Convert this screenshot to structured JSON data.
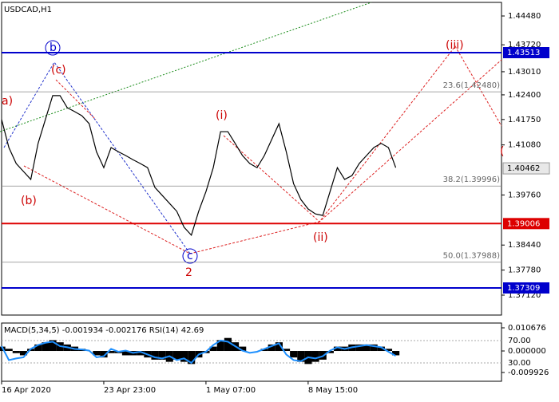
{
  "chart_data": [
    {
      "type": "line",
      "title": "USDCAD,H1",
      "categories": [
        "16 Apr 2020",
        null,
        null,
        null,
        null,
        null,
        null,
        null,
        null,
        null,
        null,
        null,
        null,
        null,
        "23 Apr 23:00",
        null,
        null,
        null,
        null,
        null,
        null,
        null,
        null,
        null,
        null,
        null,
        null,
        null,
        "1 May 07:00",
        null,
        null,
        null,
        null,
        null,
        null,
        null,
        null,
        null,
        null,
        null,
        null,
        null,
        "8 May 15:00",
        null,
        null,
        null,
        null,
        null,
        null,
        null,
        null,
        null,
        null,
        null,
        null
      ],
      "series": [
        {
          "name": "USDCAD",
          "color": "#000000",
          "values": [
            1.4175,
            1.4101,
            1.4059,
            1.4038,
            1.4017,
            1.4112,
            1.4175,
            1.4238,
            1.4238,
            1.4206,
            1.4196,
            1.4185,
            1.4164,
            1.409,
            1.4048,
            1.4101,
            1.409,
            1.408,
            1.4069,
            1.4059,
            1.4048,
            1.3996,
            1.3975,
            1.3954,
            1.3933,
            1.3891,
            1.387,
            1.3933,
            1.3985,
            1.4048,
            1.4143,
            1.4143,
            1.4112,
            1.408,
            1.4059,
            1.4048,
            1.408,
            1.4122,
            1.4164,
            1.409,
            1.4006,
            1.3964,
            1.3939,
            1.3926,
            1.3922,
            1.3985,
            1.4048,
            1.4017,
            1.4027,
            1.4059,
            1.408,
            1.4101,
            1.4112,
            1.4101,
            1.4048
          ]
        }
      ],
      "ylim": [
        1.44838,
        1.36594
      ],
      "yticks": [
        {
          "value": 1.4448,
          "label": "1.44480"
        },
        {
          "value": 1.4372,
          "label": "1.43720"
        },
        {
          "value": 1.4301,
          "label": "1.43010"
        },
        {
          "value": 1.424,
          "label": "1.42400"
        },
        {
          "value": 1.4175,
          "label": "1.41750"
        },
        {
          "value": 1.4108,
          "label": "1.41080"
        },
        {
          "value": 1.3976,
          "label": "1.39760"
        },
        {
          "value": 1.3844,
          "label": "1.38440"
        },
        {
          "value": 1.3778,
          "label": "1.37780"
        },
        {
          "value": 1.3712,
          "label": "1.37120"
        }
      ],
      "levels": [
        {
          "value": 1.43513,
          "label": "1.43513",
          "color": "#0000cc"
        },
        {
          "value": 1.39006,
          "label": "1.39006",
          "color": "#dd0000"
        },
        {
          "value": 1.37309,
          "label": "1.37309",
          "color": "#0000cc"
        }
      ],
      "current": {
        "value": 1.40462,
        "label": "1.40462"
      },
      "fib_levels": [
        {
          "value": 1.4248,
          "label": "23.6(1.42480)"
        },
        {
          "value": 1.39996,
          "label": "38.2(1.39996)"
        },
        {
          "value": 1.37988,
          "label": "50.0(1.37988)"
        }
      ],
      "annotations": [
        {
          "text": "a)",
          "color": "#cc0000"
        },
        {
          "text": "(b)",
          "color": "#cc0000"
        },
        {
          "text": "(c)",
          "color": "#cc0000"
        },
        {
          "text": "b",
          "color": "#0000cc"
        },
        {
          "text": "c",
          "color": "#0000cc"
        },
        {
          "text": "2",
          "color": "#cc0000"
        },
        {
          "text": "(i)",
          "color": "#cc0000"
        },
        {
          "text": "(ii)",
          "color": "#cc0000"
        },
        {
          "text": "(iii)",
          "color": "#cc0000"
        },
        {
          "text": "(",
          "color": "#cc0000"
        }
      ]
    },
    {
      "type": "macd",
      "title": "MACD(5,34,5) -0.001934 -0.002176 RSI(14) 42.69",
      "series": [
        {
          "name": "MACD",
          "color": "#000000",
          "values": [
            0.002,
            0.001,
            -0.001,
            -0.002,
            0.001,
            0.003,
            0.004,
            0.005,
            0.004,
            0.003,
            0.002,
            0.001,
            0.0,
            -0.002,
            -0.003,
            -0.001,
            -0.001,
            -0.002,
            -0.002,
            -0.002,
            -0.003,
            -0.004,
            -0.004,
            -0.005,
            -0.004,
            -0.005,
            -0.006,
            -0.003,
            -0.001,
            0.002,
            0.005,
            0.006,
            0.004,
            0.002,
            0.0,
            0.0,
            0.001,
            0.003,
            0.004,
            0.001,
            -0.003,
            -0.005,
            -0.006,
            -0.005,
            -0.004,
            -0.001,
            0.002,
            0.002,
            0.003,
            0.003,
            0.003,
            0.003,
            0.002,
            0.001,
            -0.002
          ]
        },
        {
          "name": "RSI",
          "color": "#1e90ff",
          "axis": "y2",
          "values": [
            60,
            35,
            38,
            40,
            55,
            62,
            66,
            68,
            60,
            58,
            55,
            54,
            52,
            40,
            42,
            55,
            50,
            52,
            48,
            50,
            45,
            40,
            38,
            42,
            35,
            38,
            30,
            45,
            50,
            62,
            70,
            68,
            60,
            52,
            48,
            50,
            55,
            60,
            65,
            45,
            35,
            33,
            40,
            38,
            42,
            52,
            58,
            55,
            58,
            60,
            62,
            60,
            58,
            50,
            42.69
          ]
        }
      ],
      "ylim": [
        0.01288,
        -0.01397
      ],
      "yticks": [
        {
          "value": 0.010676,
          "label": "0.010676"
        },
        {
          "value": 0.0,
          "label": "0.000000"
        },
        {
          "value": -0.009926,
          "label": "-0.009926"
        }
      ],
      "y2lim": [
        101.4,
        -2.9
      ],
      "y2ticks": [
        {
          "value": 70,
          "label": "70.00"
        },
        {
          "value": 30,
          "label": "30.00"
        }
      ]
    }
  ]
}
